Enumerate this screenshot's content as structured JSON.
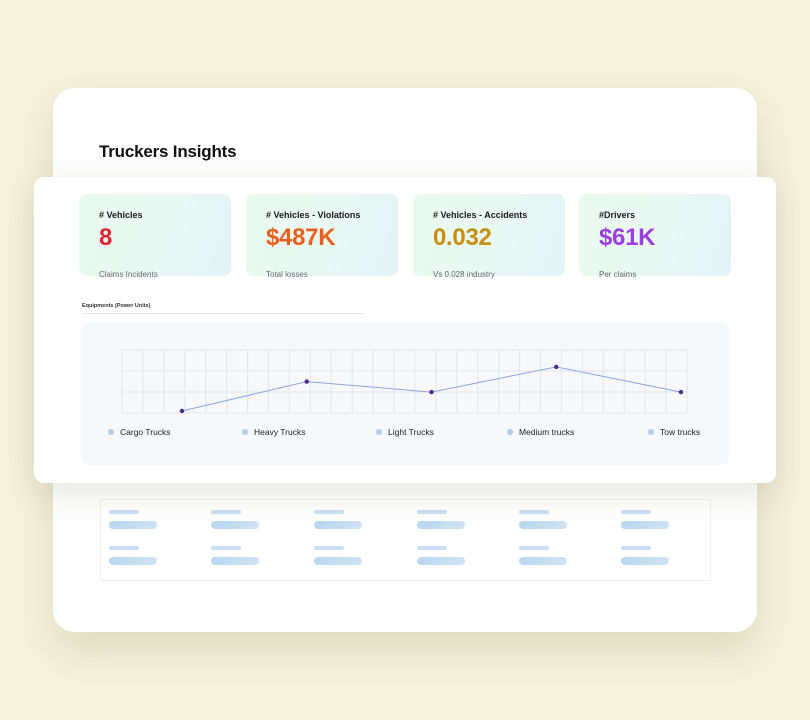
{
  "header": {
    "title": "Truckers Insights"
  },
  "kpis": [
    {
      "label": "# Vehicles",
      "value": "8",
      "sub": "Claims Incidents",
      "color": "#d9282f"
    },
    {
      "label": "# Vehicles - Violations",
      "value": "$487K",
      "sub": "Total losses",
      "color": "#e8601c"
    },
    {
      "label": "# Vehicles - Accidents",
      "value": "0.032",
      "sub": "Vs 0.028 industry",
      "color": "#c98f12"
    },
    {
      "label": "#Drivers",
      "value": "$61K",
      "sub": "Per claims",
      "color": "#9b3ee6"
    }
  ],
  "equipment_section": {
    "title": "Equipments (Power Units)"
  },
  "chart_data": {
    "type": "line",
    "title": "Equipments (Power Units)",
    "categories": [
      "Cargo Trucks",
      "Heavy Trucks",
      "Light Trucks",
      "Medium trucks",
      "Tow trucks"
    ],
    "series": [
      {
        "name": "Equipments (Power Units)",
        "values": [
          0,
          1.4,
          0.9,
          2.1,
          0.9
        ]
      }
    ],
    "ylim": [
      0,
      3
    ],
    "grid": true,
    "legend": "bottom",
    "line_color": "#8ea6df",
    "point_color": "#4d2a8f",
    "grid_color": "#e2e5ea"
  }
}
